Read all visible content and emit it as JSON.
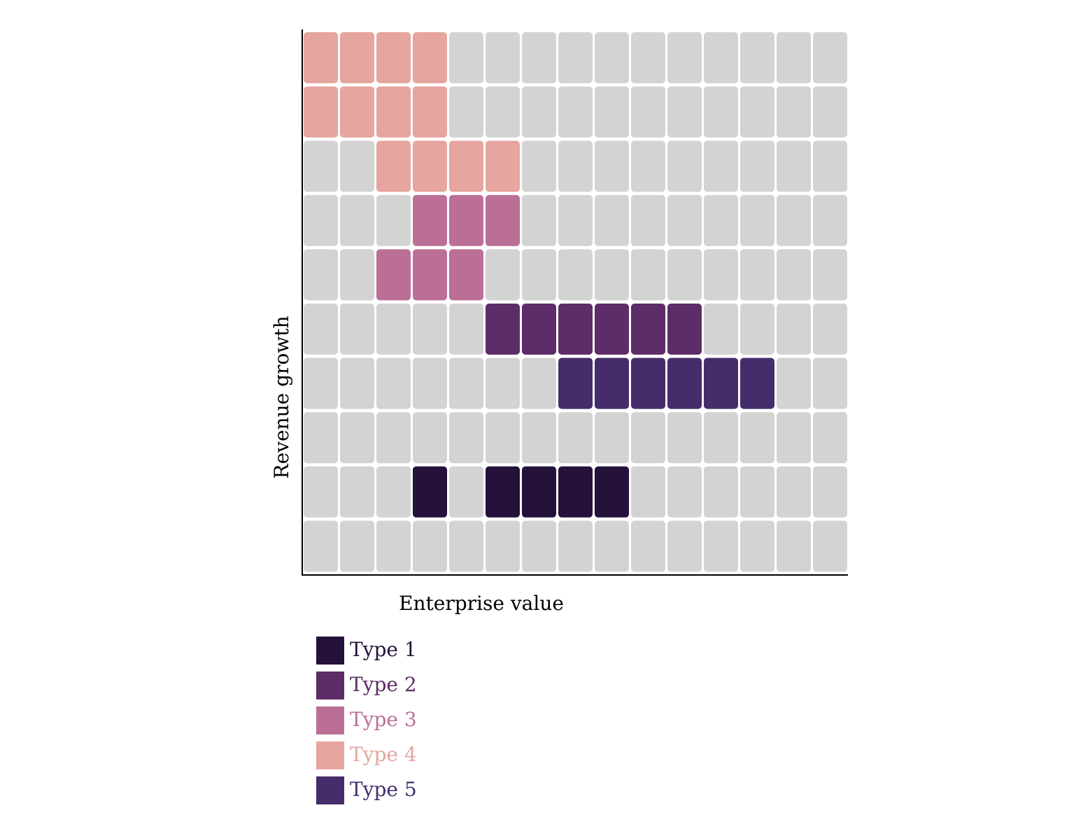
{
  "chart_data": {
    "type": "heatmap",
    "subtype": "waffle",
    "xlabel": "Enterprise value",
    "ylabel": "Revenue growth",
    "columns": 15,
    "rows": 10,
    "empty_color": "#d3d3d3",
    "series": [
      {
        "name": "Type 1",
        "color": "#24123a",
        "cells": [
          [
            8,
            3
          ],
          [
            8,
            5
          ],
          [
            8,
            6
          ],
          [
            8,
            7
          ],
          [
            8,
            8
          ]
        ]
      },
      {
        "name": "Type 2",
        "color": "#5e2c68",
        "cells": [
          [
            5,
            5
          ],
          [
            5,
            6
          ],
          [
            5,
            7
          ],
          [
            5,
            8
          ],
          [
            5,
            9
          ],
          [
            5,
            10
          ]
        ]
      },
      {
        "name": "Type 3",
        "color": "#bb6f97",
        "cells": [
          [
            3,
            3
          ],
          [
            3,
            4
          ],
          [
            3,
            5
          ],
          [
            4,
            2
          ],
          [
            4,
            3
          ],
          [
            4,
            4
          ]
        ]
      },
      {
        "name": "Type 4",
        "color": "#e6a59e",
        "cells": [
          [
            0,
            0
          ],
          [
            0,
            1
          ],
          [
            0,
            2
          ],
          [
            0,
            3
          ],
          [
            1,
            0
          ],
          [
            1,
            1
          ],
          [
            1,
            2
          ],
          [
            1,
            3
          ],
          [
            2,
            2
          ],
          [
            2,
            3
          ],
          [
            2,
            4
          ],
          [
            2,
            5
          ]
        ]
      },
      {
        "name": "Type 5",
        "color": "#452d6b",
        "cells": [
          [
            6,
            7
          ],
          [
            6,
            8
          ],
          [
            6,
            9
          ],
          [
            6,
            10
          ],
          [
            6,
            11
          ],
          [
            6,
            12
          ]
        ]
      }
    ],
    "legend": {
      "items": [
        {
          "label": "Type 1",
          "color": "#24123a"
        },
        {
          "label": "Type 2",
          "color": "#5e2c68"
        },
        {
          "label": "Type 3",
          "color": "#bb6f97"
        },
        {
          "label": "Type 4",
          "color": "#e6a59e"
        },
        {
          "label": "Type 5",
          "color": "#452d6b"
        }
      ],
      "placement": "bottom-left"
    }
  }
}
